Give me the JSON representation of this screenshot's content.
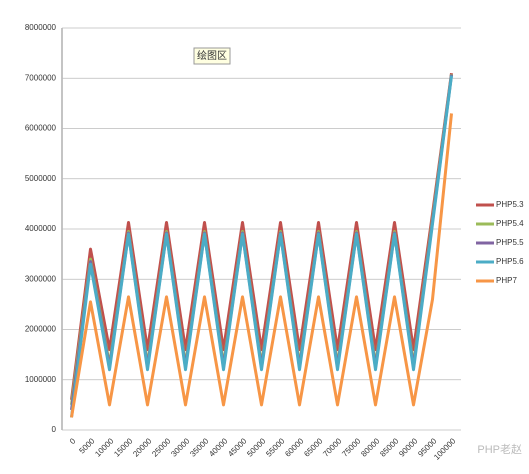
{
  "chart_data": {
    "type": "line",
    "annotation": "绘图区",
    "watermark": "PHP老赵",
    "categories": [
      "0",
      "5000",
      "10000",
      "15000",
      "20000",
      "25000",
      "30000",
      "35000",
      "40000",
      "45000",
      "50000",
      "55000",
      "60000",
      "65000",
      "70000",
      "75000",
      "80000",
      "85000",
      "90000",
      "95000",
      "100000"
    ],
    "ylim": [
      0,
      8000000
    ],
    "yticks": [
      0,
      1000000,
      2000000,
      3000000,
      4000000,
      5000000,
      6000000,
      7000000,
      8000000
    ],
    "grid": true,
    "legend": "right",
    "series": [
      {
        "name": "PHP5.3",
        "color": "#c0504d",
        "values": [
          600000,
          3600000,
          1600000,
          4130000,
          1600000,
          4130000,
          1600000,
          4130000,
          1600000,
          4130000,
          1600000,
          4130000,
          1600000,
          4130000,
          1600000,
          4130000,
          1600000,
          4130000,
          1600000,
          4300000,
          7100000
        ]
      },
      {
        "name": "PHP5.4",
        "color": "#9bbb59",
        "values": [
          500000,
          3400000,
          1300000,
          3950000,
          1300000,
          3950000,
          1300000,
          3950000,
          1300000,
          3950000,
          1300000,
          3950000,
          1300000,
          3950000,
          1300000,
          3950000,
          1300000,
          3950000,
          1300000,
          4200000,
          7080000
        ]
      },
      {
        "name": "PHP5.5",
        "color": "#8064a2",
        "values": [
          400000,
          3350000,
          1250000,
          3920000,
          1250000,
          3920000,
          1250000,
          3920000,
          1250000,
          3920000,
          1250000,
          3920000,
          1250000,
          3920000,
          1250000,
          3920000,
          1250000,
          3920000,
          1250000,
          4150000,
          7070000
        ]
      },
      {
        "name": "PHP5.6",
        "color": "#4bacc6",
        "values": [
          250000,
          3300000,
          1200000,
          3900000,
          1200000,
          3900000,
          1200000,
          3900000,
          1200000,
          3900000,
          1200000,
          3900000,
          1200000,
          3900000,
          1200000,
          3900000,
          1200000,
          3900000,
          1200000,
          4100000,
          7050000
        ]
      },
      {
        "name": "PHP7",
        "color": "#f79646",
        "values": [
          250000,
          2550000,
          500000,
          2650000,
          500000,
          2650000,
          500000,
          2650000,
          500000,
          2650000,
          500000,
          2650000,
          500000,
          2650000,
          500000,
          2650000,
          500000,
          2650000,
          500000,
          2600000,
          6300000
        ]
      }
    ]
  }
}
